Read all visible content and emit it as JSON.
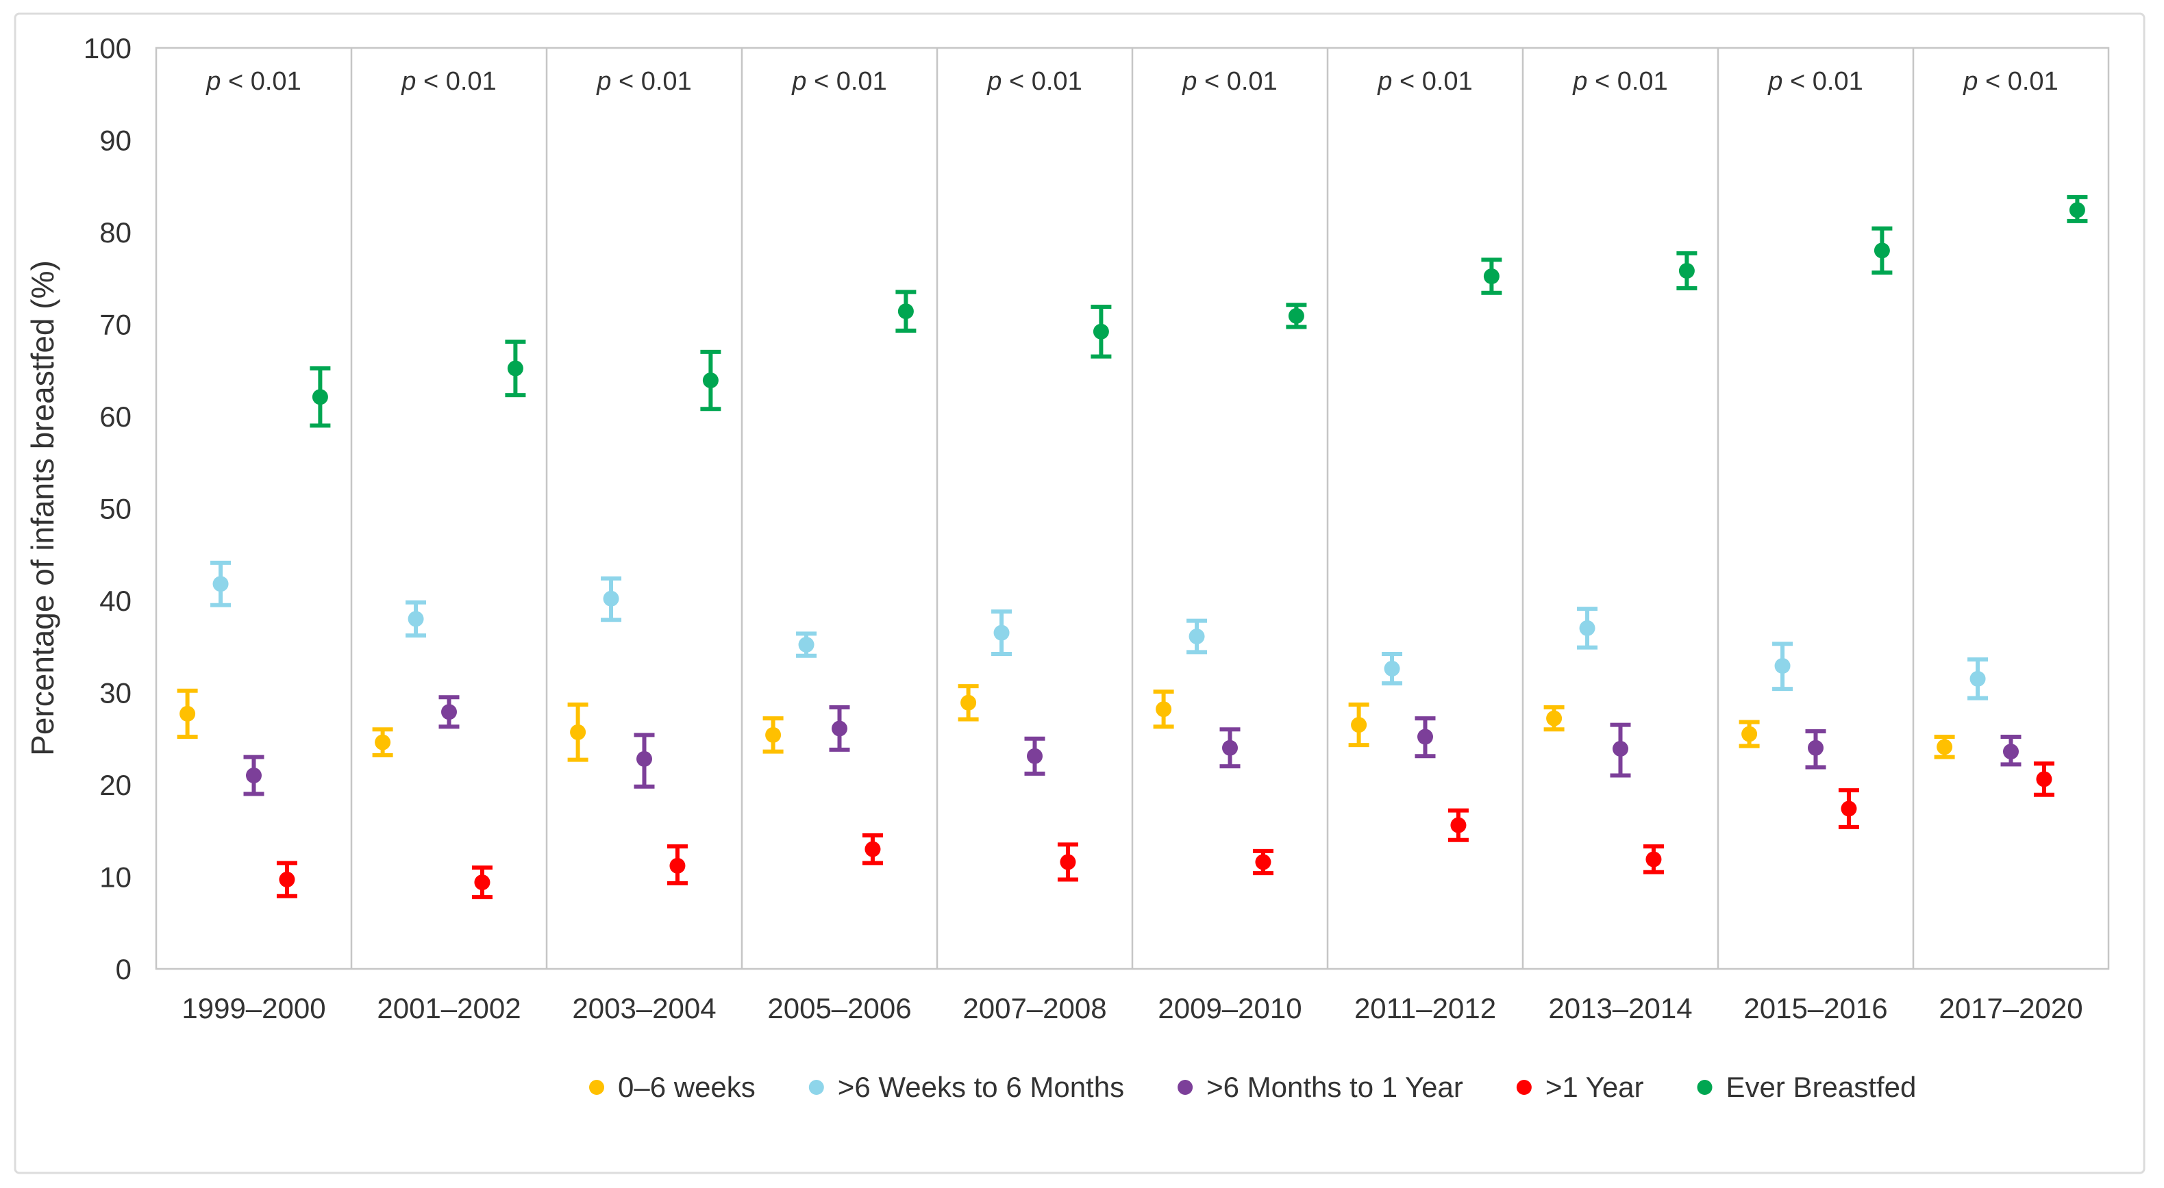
{
  "figure": {
    "y_axis_title": "Percentage of infants breastfed (%)",
    "panel_annotation_italic": "p",
    "panel_annotation_rest": " < 0.01"
  },
  "colors": {
    "outer_border": "#dcdcdc",
    "panel_frame": "#c6c6c6",
    "text": "#333333",
    "series_0_6_weeks": "#FFC000",
    "series_6_weeks_to_6_months": "#8ED5EA",
    "series_6_months_to_1_year": "#7C3F99",
    "series_over_1_year": "#FF0000",
    "series_ever_breastfed": "#00A651"
  },
  "chart_data": {
    "type": "scatter",
    "title": "",
    "xlabel": "",
    "ylabel": "Percentage of infants breastfed (%)",
    "ylim": [
      0,
      100
    ],
    "yticks": [
      0,
      10,
      20,
      30,
      40,
      50,
      60,
      70,
      80,
      90,
      100
    ],
    "grid": false,
    "legend_position": "bottom",
    "panel_annotation": "p < 0.01",
    "categories": [
      "1999–2000",
      "2001–2002",
      "2003–2004",
      "2005–2006",
      "2007–2008",
      "2009–2010",
      "2011–2012",
      "2013–2014",
      "2015–2016",
      "2017–2020"
    ],
    "series": [
      {
        "name": "0–6 weeks",
        "color": "#FFC000",
        "values": [
          27.7,
          24.6,
          25.7,
          25.4,
          28.9,
          28.2,
          26.5,
          27.2,
          25.5,
          24.1
        ],
        "ci_low": [
          25.2,
          23.2,
          22.7,
          23.6,
          27.1,
          26.3,
          24.3,
          26.0,
          24.2,
          23.0
        ],
        "ci_high": [
          30.2,
          26.0,
          28.7,
          27.2,
          30.7,
          30.1,
          28.7,
          28.4,
          26.8,
          25.2
        ]
      },
      {
        "name": ">6 Weeks to 6 Months",
        "color": "#8ED5EA",
        "values": [
          41.8,
          38.0,
          40.2,
          35.2,
          36.5,
          36.1,
          32.6,
          37.0,
          32.9,
          31.5
        ],
        "ci_low": [
          39.5,
          36.2,
          37.9,
          34.0,
          34.2,
          34.4,
          31.0,
          34.9,
          30.4,
          29.4
        ],
        "ci_high": [
          44.1,
          39.8,
          42.4,
          36.4,
          38.8,
          37.8,
          34.2,
          39.1,
          35.3,
          33.6
        ]
      },
      {
        "name": ">6 Months to 1 Year",
        "color": "#7C3F99",
        "values": [
          21.0,
          27.9,
          22.8,
          26.1,
          23.1,
          24.0,
          25.2,
          23.9,
          24.0,
          23.6
        ],
        "ci_low": [
          19.0,
          26.3,
          19.8,
          23.8,
          21.2,
          22.0,
          23.1,
          21.0,
          21.9,
          22.2
        ],
        "ci_high": [
          23.0,
          29.5,
          25.4,
          28.4,
          25.0,
          26.0,
          27.2,
          26.5,
          25.8,
          25.2
        ]
      },
      {
        "name": ">1 Year",
        "color": "#FF0000",
        "values": [
          9.7,
          9.4,
          11.2,
          13.0,
          11.6,
          11.6,
          15.6,
          11.9,
          17.4,
          20.6
        ],
        "ci_low": [
          7.9,
          7.8,
          9.3,
          11.5,
          9.7,
          10.4,
          14.0,
          10.5,
          15.4,
          18.9
        ],
        "ci_high": [
          11.5,
          11.0,
          13.3,
          14.5,
          13.5,
          12.8,
          17.2,
          13.3,
          19.4,
          22.3
        ]
      },
      {
        "name": "Ever Breastfed",
        "color": "#00A651",
        "values": [
          62.1,
          65.2,
          63.9,
          71.4,
          69.2,
          70.9,
          75.2,
          75.8,
          78.0,
          82.4
        ],
        "ci_low": [
          59.0,
          62.3,
          60.8,
          69.3,
          66.5,
          69.7,
          73.4,
          73.9,
          75.6,
          81.2
        ],
        "ci_high": [
          65.2,
          68.1,
          67.0,
          73.5,
          71.9,
          72.1,
          77.0,
          77.7,
          80.4,
          83.8
        ]
      }
    ]
  }
}
